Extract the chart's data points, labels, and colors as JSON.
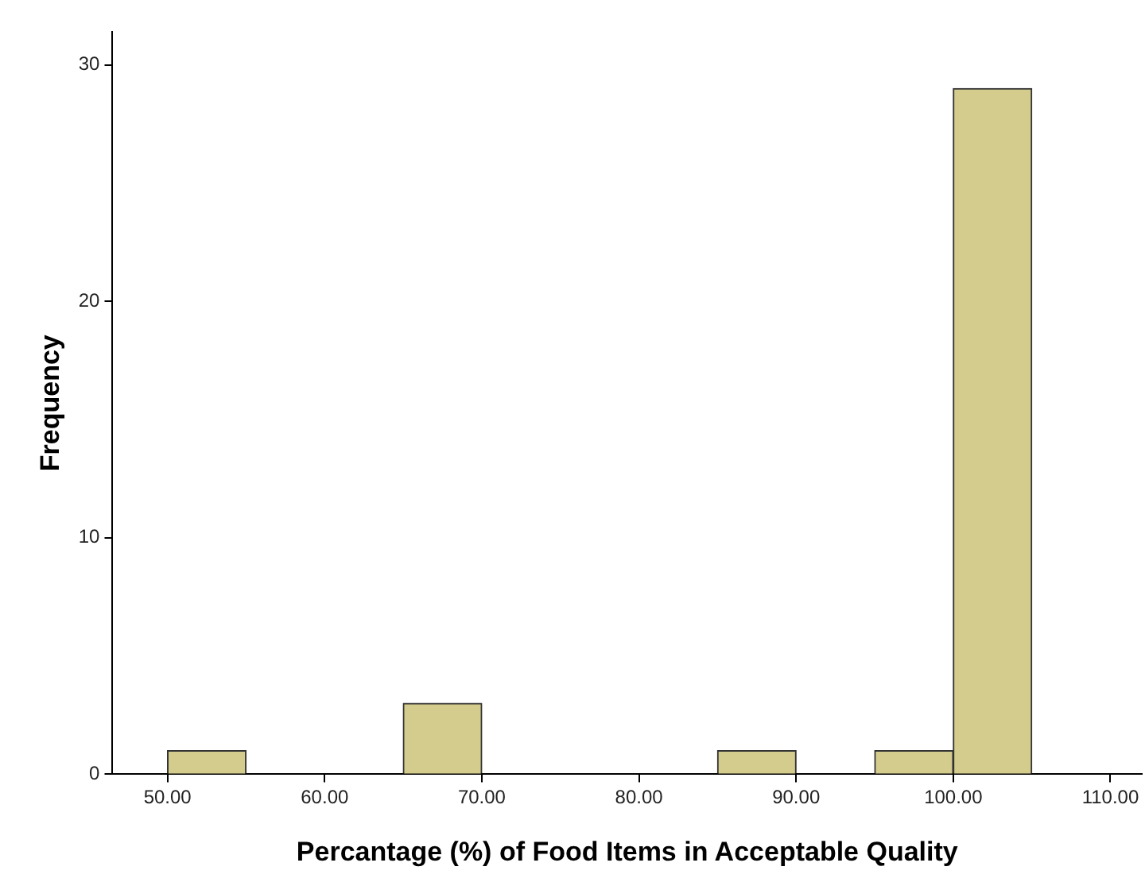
{
  "chart_data": {
    "type": "histogram",
    "xlabel": "Percantage (%) of Food Items in Acceptable Quality",
    "ylabel": "Frequency",
    "bins": [
      50,
      55,
      60,
      65,
      70,
      75,
      80,
      85,
      90,
      95,
      100,
      105
    ],
    "values": [
      1,
      0,
      0,
      3,
      0,
      0,
      0,
      1,
      0,
      1,
      29
    ],
    "color": "#d4cc8c",
    "xlim": [
      46.5,
      112
    ],
    "xticks": [
      {
        "value": 50,
        "label": "50.00"
      },
      {
        "value": 60,
        "label": "60.00"
      },
      {
        "value": 70,
        "label": "70.00"
      },
      {
        "value": 80,
        "label": "80.00"
      },
      {
        "value": 90,
        "label": "90.00"
      },
      {
        "value": 100,
        "label": "100.00"
      },
      {
        "value": 110,
        "label": "110.00"
      }
    ],
    "ylim": [
      0,
      31.4
    ],
    "yticks": [
      0,
      10,
      20,
      30
    ],
    "grid": false,
    "legend": false
  }
}
